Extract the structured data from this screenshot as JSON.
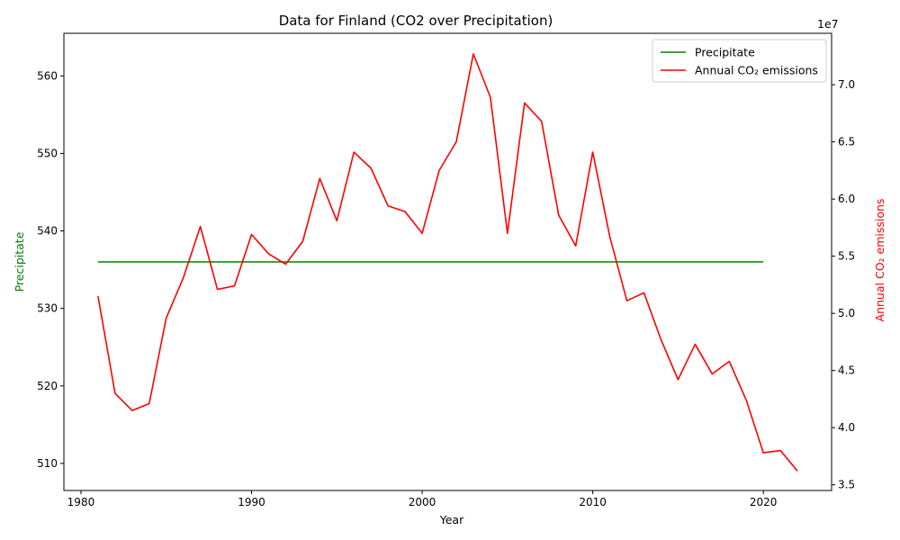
{
  "chart_data": {
    "type": "line",
    "title": "Data for Finland (CO2 over Precipitation)",
    "xlabel": "Year",
    "ylabel_left": "Precipitate",
    "ylabel_right": "Annual CO₂ emissions",
    "right_axis_offset": "1e7",
    "xlim": [
      1979,
      2024
    ],
    "ylim_left": [
      506.5,
      565.5
    ],
    "ylim_right": [
      3.45,
      7.45
    ],
    "x_ticks": [
      1980,
      1990,
      2000,
      2010,
      2020
    ],
    "y_ticks_left": [
      510,
      520,
      530,
      540,
      550,
      560
    ],
    "y_ticks_right": [
      3.5,
      4.0,
      4.5,
      5.0,
      5.5,
      6.0,
      6.5,
      7.0
    ],
    "legend_position": "top-right",
    "grid": false,
    "colors": {
      "precipitate": "#008000",
      "co2": "#ff0000"
    },
    "series": [
      {
        "name": "Precipitate",
        "axis": "left",
        "x": [
          1981,
          2020
        ],
        "values": [
          536,
          536
        ]
      },
      {
        "name": "Annual CO₂ emissions",
        "axis": "right",
        "x": [
          1981,
          1982,
          1983,
          1984,
          1985,
          1986,
          1987,
          1988,
          1989,
          1990,
          1991,
          1992,
          1993,
          1994,
          1995,
          1996,
          1997,
          1998,
          1999,
          2000,
          2001,
          2002,
          2003,
          2004,
          2005,
          2006,
          2007,
          2008,
          2009,
          2010,
          2011,
          2012,
          2013,
          2014,
          2015,
          2016,
          2017,
          2018,
          2019,
          2020,
          2021,
          2022
        ],
        "values": [
          5.15,
          4.3,
          4.15,
          4.21,
          4.96,
          5.31,
          5.76,
          5.21,
          5.24,
          5.69,
          5.52,
          5.43,
          5.63,
          6.18,
          5.81,
          6.41,
          6.27,
          5.94,
          5.89,
          5.7,
          6.25,
          6.5,
          7.27,
          6.89,
          5.7,
          6.84,
          6.68,
          5.86,
          5.59,
          6.41,
          5.67,
          5.11,
          5.18,
          4.77,
          4.42,
          4.73,
          4.47,
          4.58,
          4.24,
          3.78,
          3.8,
          3.62
        ]
      }
    ]
  }
}
